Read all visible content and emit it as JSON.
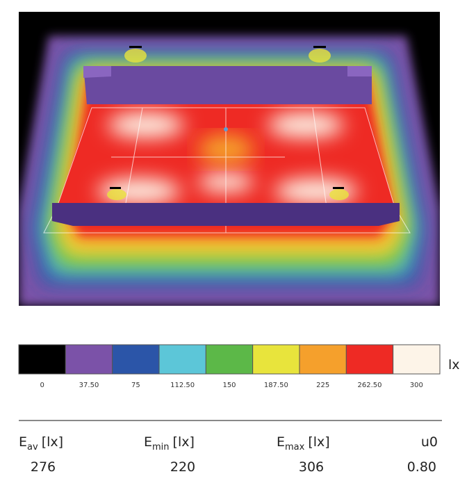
{
  "legend": {
    "unit": "lx",
    "colors": [
      "#000000",
      "#7b52a8",
      "#2b55a8",
      "#5cc6d8",
      "#5cb848",
      "#e8e43c",
      "#f5a02c",
      "#ee2a24",
      "#fdf4e8"
    ],
    "labels": [
      "0",
      "37.50",
      "75",
      "112.50",
      "150",
      "187.50",
      "225",
      "262.50",
      "300"
    ]
  },
  "stats": [
    {
      "symbol": "E",
      "subscript": "av",
      "unit": "[lx]",
      "value": "276"
    },
    {
      "symbol": "E",
      "subscript": "min",
      "unit": "[lx]",
      "value": "220"
    },
    {
      "symbol": "E",
      "subscript": "max",
      "unit": "[lx]",
      "value": "306"
    },
    {
      "symbol": "u0",
      "value": "0.80"
    }
  ]
}
